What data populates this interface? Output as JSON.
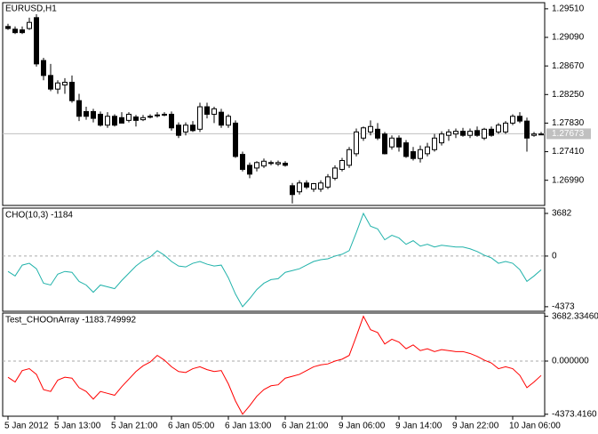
{
  "chart_data": [
    {
      "type": "candlestick",
      "title": "EURUSD,H1",
      "categories": [
        "5 Jan 2012",
        null,
        null,
        null,
        null,
        null,
        null,
        "5 Jan 13:00",
        null,
        null,
        null,
        null,
        null,
        null,
        null,
        "5 Jan 21:00",
        null,
        null,
        null,
        null,
        null,
        null,
        null,
        "6 Jan 05:00",
        null,
        null,
        null,
        null,
        null,
        null,
        null,
        "6 Jan 13:00",
        null,
        null,
        null,
        null,
        null,
        null,
        null,
        "6 Jan 21:00",
        null,
        null,
        null,
        null,
        null,
        null,
        null,
        "9 Jan 06:00",
        null,
        null,
        null,
        null,
        null,
        null,
        null,
        "9 Jan 14:00",
        null,
        null,
        null,
        null,
        null,
        null,
        null,
        "9 Jan 22:00",
        null,
        null,
        null,
        null,
        null,
        null,
        null,
        "10 Jan 06:00",
        null,
        null,
        null,
        null
      ],
      "open": [
        1.2925,
        1.2921,
        1.292,
        1.2922,
        1.2938,
        1.2875,
        1.2853,
        1.2833,
        1.2839,
        1.2843,
        1.2816,
        1.28,
        1.28,
        1.2796,
        1.278,
        1.2793,
        1.2791,
        1.2787,
        1.2792,
        1.2788,
        1.2793,
        1.2794,
        1.2795,
        1.2796,
        1.278,
        1.277,
        1.278,
        1.2774,
        1.2807,
        1.2796,
        1.2799,
        1.278,
        1.2783,
        1.2737,
        1.2721,
        1.2717,
        1.272,
        1.2724,
        1.2723,
        1.2724,
        1.2691,
        1.2682,
        1.2695,
        1.2686,
        1.2686,
        1.2689,
        1.2702,
        1.2715,
        1.2721,
        1.2738,
        1.2761,
        1.277,
        1.2774,
        1.2767,
        1.2748,
        1.2761,
        1.2754,
        1.2741,
        1.2731,
        1.2738,
        1.2744,
        1.2754,
        1.2765,
        1.2767,
        1.2771,
        1.2765,
        1.2772,
        1.2761,
        1.2774,
        1.277,
        1.277,
        1.2783,
        1.2793,
        1.2786,
        1.2765,
        1.2767
      ],
      "high": [
        1.2929,
        1.2925,
        1.2925,
        1.2938,
        1.2943,
        1.2879,
        1.287,
        1.2846,
        1.2849,
        1.2853,
        1.2826,
        1.2807,
        1.2804,
        1.28,
        1.2799,
        1.2796,
        1.2799,
        1.2799,
        1.2795,
        1.2795,
        1.2796,
        1.2799,
        1.2799,
        1.28,
        1.2784,
        1.2784,
        1.2786,
        1.2813,
        1.2813,
        1.2807,
        1.2804,
        1.2796,
        1.2787,
        1.2741,
        1.2725,
        1.2727,
        1.2731,
        1.2728,
        1.2728,
        1.2727,
        1.2695,
        1.2699,
        1.2699,
        1.2695,
        1.2699,
        1.2708,
        1.2721,
        1.2732,
        1.2748,
        1.2775,
        1.2778,
        1.2787,
        1.2783,
        1.277,
        1.2765,
        1.2765,
        1.2758,
        1.2748,
        1.275,
        1.2754,
        1.2767,
        1.2771,
        1.2774,
        1.2775,
        1.2776,
        1.2775,
        1.2778,
        1.2776,
        1.2778,
        1.2783,
        1.2786,
        1.2796,
        1.2799,
        1.2791,
        1.277,
        1.277
      ],
      "low": [
        1.292,
        1.2914,
        1.2914,
        1.292,
        1.2866,
        1.2846,
        1.283,
        1.2826,
        1.2826,
        1.2813,
        1.2786,
        1.2788,
        1.2784,
        1.2778,
        1.2776,
        1.2778,
        1.2783,
        1.2784,
        1.2778,
        1.2786,
        1.279,
        1.2791,
        1.2793,
        1.2772,
        1.2761,
        1.2765,
        1.277,
        1.277,
        1.279,
        1.2783,
        1.2776,
        1.2776,
        1.2732,
        1.2712,
        1.2702,
        1.2712,
        1.2717,
        1.2721,
        1.272,
        1.2719,
        1.2665,
        1.2678,
        1.2686,
        1.2682,
        1.2682,
        1.2686,
        1.2699,
        1.2712,
        1.2717,
        1.2734,
        1.2757,
        1.2765,
        1.2758,
        1.2737,
        1.2744,
        1.2741,
        1.2732,
        1.2728,
        1.2725,
        1.2734,
        1.2741,
        1.275,
        1.2757,
        1.2761,
        1.2763,
        1.2761,
        1.2763,
        1.2758,
        1.2763,
        1.2767,
        1.2767,
        1.278,
        1.2783,
        1.2741,
        1.2763,
        1.2766
      ],
      "close": [
        1.2922,
        1.2916,
        1.2916,
        1.2931,
        1.287,
        1.2853,
        1.2833,
        1.2842,
        1.2843,
        1.2816,
        1.2793,
        1.2793,
        1.279,
        1.278,
        1.2793,
        1.278,
        1.2783,
        1.2796,
        1.2787,
        1.2791,
        1.2792,
        1.2795,
        1.2796,
        1.2776,
        1.2765,
        1.278,
        1.2772,
        1.2807,
        1.2796,
        1.2804,
        1.278,
        1.2793,
        1.2734,
        1.2715,
        1.2708,
        1.2725,
        1.2727,
        1.2725,
        1.2725,
        1.2721,
        1.2678,
        1.2695,
        1.2689,
        1.2694,
        1.2695,
        1.2704,
        1.2717,
        1.2728,
        1.2744,
        1.277,
        1.2776,
        1.2778,
        1.2761,
        1.2738,
        1.2761,
        1.2748,
        1.2734,
        1.2731,
        1.2744,
        1.2748,
        1.2761,
        1.2767,
        1.277,
        1.2771,
        1.2765,
        1.2771,
        1.2765,
        1.2774,
        1.2765,
        1.278,
        1.2783,
        1.2793,
        1.2786,
        1.2761,
        1.2767,
        1.2767
      ],
      "up_color": "#ffffff",
      "down_color": "#000000",
      "current_price": 1.27673,
      "ylim": [
        1.2662,
        1.296
      ],
      "yticks": [
        {
          "value": 1.2951,
          "label": "1.29510"
        },
        {
          "value": 1.2909,
          "label": "1.29090"
        },
        {
          "value": 1.2867,
          "label": "1.28670"
        },
        {
          "value": 1.2825,
          "label": "1.28250"
        },
        {
          "value": 1.2783,
          "label": "1.27830"
        },
        {
          "value": 1.2741,
          "label": "1.27410"
        },
        {
          "value": 1.2699,
          "label": "1.26990"
        }
      ]
    },
    {
      "type": "line",
      "title": "CHO(10,3) -1184",
      "color": "#20b2aa",
      "values": [
        -1328,
        -1719,
        -781,
        -625,
        -1094,
        -2344,
        -2500,
        -1563,
        -1328,
        -1406,
        -2188,
        -2500,
        -3125,
        -2500,
        -2656,
        -2813,
        -2109,
        -1484,
        -859,
        -391,
        -78,
        469,
        78,
        -469,
        -859,
        -938,
        -625,
        -469,
        -703,
        -859,
        -781,
        -1875,
        -3281,
        -4373,
        -3672,
        -2891,
        -2344,
        -2031,
        -1953,
        -1406,
        -1250,
        -1094,
        -781,
        -469,
        -313,
        -234,
        0,
        156,
        469,
        2031,
        3682,
        2578,
        2344,
        1406,
        1797,
        1563,
        1016,
        1328,
        859,
        1016,
        781,
        938,
        859,
        781,
        781,
        625,
        391,
        78,
        -156,
        -625,
        -469,
        -625,
        -1172,
        -2188,
        -1719,
        -1184
      ],
      "ylim": [
        -4766,
        4140
      ],
      "yticks": [
        3682,
        0,
        -4373
      ],
      "level_lines": [
        0
      ]
    },
    {
      "type": "line",
      "title": "Test_CHOOnArray -1183.749992",
      "color": "#ff0000",
      "values": [
        -1328,
        -1719,
        -781,
        -625,
        -1094,
        -2344,
        -2500,
        -1563,
        -1328,
        -1406,
        -2188,
        -2500,
        -3125,
        -2500,
        -2656,
        -2813,
        -2109,
        -1484,
        -859,
        -391,
        -78,
        469,
        78,
        -469,
        -859,
        -938,
        -625,
        -469,
        -703,
        -859,
        -781,
        -1875,
        -3281,
        -4373.416,
        -3672,
        -2891,
        -2344,
        -2031,
        -1953,
        -1406,
        -1250,
        -1094,
        -781,
        -469,
        -313,
        -234,
        0,
        156,
        469,
        2031,
        3682.3346,
        2578,
        2344,
        1406,
        1797,
        1563,
        1016,
        1328,
        859,
        1016,
        781,
        938,
        859,
        781,
        781,
        625,
        391,
        78,
        -156,
        -625,
        -469,
        -625,
        -1172,
        -2188,
        -1719,
        -1183.749992
      ],
      "ylim": [
        -4535,
        3950
      ],
      "yticks": [
        {
          "value": 3682.3346,
          "label": "3682.33460"
        },
        {
          "value": 0,
          "label": "0.000000"
        },
        {
          "value": -4373.416,
          "label": "-4373.4160"
        }
      ],
      "level_lines": [
        0
      ]
    }
  ]
}
